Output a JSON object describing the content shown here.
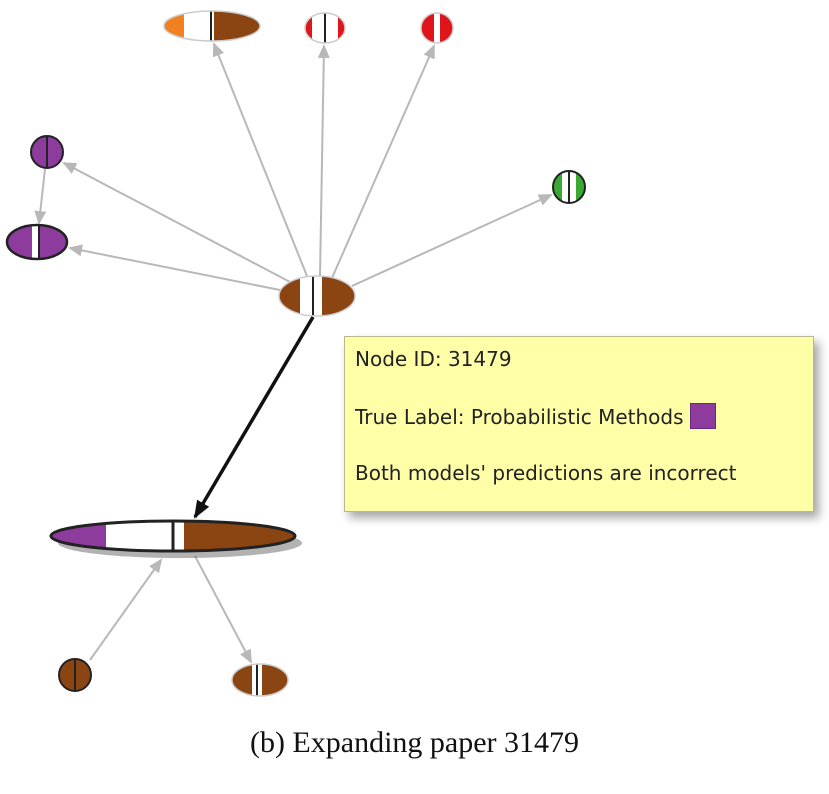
{
  "tooltip": {
    "node_id_line": "Node ID: 31479",
    "true_label_line": "True Label: Probabilistic Methods",
    "label_color": "#8e3b9e",
    "prediction_line": "Both models' predictions are incorrect"
  },
  "caption": "(b)  Expanding paper 31479",
  "colors": {
    "brown": "#8b4513",
    "purple": "#8e3b9e",
    "red": "#e0151c",
    "orange": "#f08020",
    "green": "#3aa832",
    "edge": "#b8b8b8",
    "selected_edge": "#111111"
  }
}
